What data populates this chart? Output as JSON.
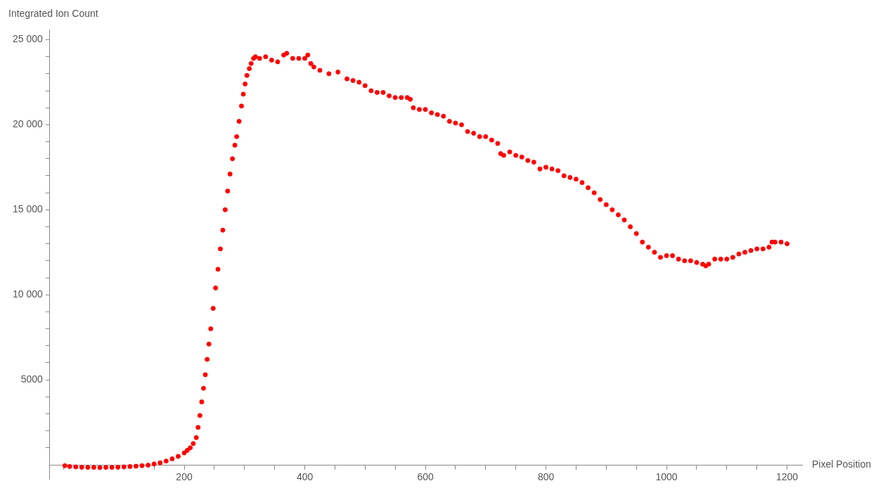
{
  "chart_data": {
    "type": "scatter",
    "xlabel": "Pixel Position",
    "ylabel": "Integrated Ion Count",
    "marker": "circle",
    "grid": false,
    "legend": false,
    "xlim": [
      -23,
      1225
    ],
    "ylim": [
      -850,
      25600
    ],
    "xticks": [
      {
        "value": 0,
        "label": null
      },
      {
        "value": 50,
        "label": null
      },
      {
        "value": 100,
        "label": null
      },
      {
        "value": 150,
        "label": null
      },
      200,
      {
        "value": 250,
        "label": null
      },
      {
        "value": 300,
        "label": null
      },
      {
        "value": 350,
        "label": null
      },
      400,
      {
        "value": 450,
        "label": null
      },
      {
        "value": 500,
        "label": null
      },
      {
        "value": 550,
        "label": null
      },
      600,
      {
        "value": 650,
        "label": null
      },
      {
        "value": 700,
        "label": null
      },
      {
        "value": 750,
        "label": null
      },
      800,
      {
        "value": 850,
        "label": null
      },
      {
        "value": 900,
        "label": null
      },
      {
        "value": 950,
        "label": null
      },
      1000,
      {
        "value": 1050,
        "label": null
      },
      {
        "value": 1100,
        "label": null
      },
      {
        "value": 1150,
        "label": null
      },
      1200
    ],
    "yticks": [
      {
        "value": 1000,
        "label": null
      },
      {
        "value": 2000,
        "label": null
      },
      {
        "value": 3000,
        "label": null
      },
      {
        "value": 4000,
        "label": null
      },
      5000,
      {
        "value": 6000,
        "label": null
      },
      {
        "value": 7000,
        "label": null
      },
      {
        "value": 8000,
        "label": null
      },
      {
        "value": 9000,
        "label": null
      },
      {
        "value": 10000,
        "label": "10 000"
      },
      {
        "value": 11000,
        "label": null
      },
      {
        "value": 12000,
        "label": null
      },
      {
        "value": 13000,
        "label": null
      },
      {
        "value": 14000,
        "label": null
      },
      {
        "value": 15000,
        "label": "15 000"
      },
      {
        "value": 16000,
        "label": null
      },
      {
        "value": 17000,
        "label": null
      },
      {
        "value": 18000,
        "label": null
      },
      {
        "value": 19000,
        "label": null
      },
      {
        "value": 20000,
        "label": "20 000"
      },
      {
        "value": 21000,
        "label": null
      },
      {
        "value": 22000,
        "label": null
      },
      {
        "value": 23000,
        "label": null
      },
      {
        "value": 24000,
        "label": null
      },
      {
        "value": 25000,
        "label": "25 000"
      }
    ],
    "series": [
      {
        "color": "#ff0000",
        "x": [
          2,
          10,
          20,
          30,
          40,
          50,
          60,
          70,
          80,
          90,
          100,
          110,
          120,
          130,
          140,
          150,
          160,
          170,
          180,
          190,
          200,
          205,
          210,
          215,
          220,
          223,
          226,
          229,
          232,
          235,
          238,
          241,
          244,
          248,
          252,
          256,
          260,
          264,
          268,
          272,
          276,
          280,
          284,
          287,
          291,
          295,
          298,
          301,
          304,
          308,
          311,
          315,
          318,
          325,
          335,
          345,
          355,
          365,
          370,
          380,
          390,
          400,
          405,
          410,
          415,
          425,
          440,
          455,
          470,
          480,
          490,
          500,
          510,
          520,
          530,
          540,
          550,
          560,
          570,
          575,
          580,
          590,
          600,
          610,
          620,
          630,
          640,
          650,
          660,
          670,
          680,
          690,
          700,
          710,
          720,
          725,
          730,
          740,
          750,
          760,
          770,
          780,
          790,
          800,
          810,
          820,
          830,
          840,
          850,
          860,
          870,
          880,
          890,
          900,
          910,
          920,
          930,
          940,
          950,
          960,
          970,
          980,
          990,
          1000,
          1010,
          1020,
          1030,
          1040,
          1050,
          1060,
          1065,
          1070,
          1080,
          1090,
          1100,
          1110,
          1120,
          1130,
          1140,
          1150,
          1160,
          1170,
          1175,
          1180,
          1190,
          1200
        ],
        "values": [
          -50,
          -100,
          -120,
          -140,
          -150,
          -150,
          -160,
          -150,
          -150,
          -140,
          -120,
          -100,
          -80,
          -50,
          -20,
          50,
          120,
          220,
          350,
          500,
          700,
          850,
          1000,
          1250,
          1600,
          2200,
          2900,
          3700,
          4500,
          5300,
          6200,
          7100,
          8000,
          9200,
          10400,
          11500,
          12700,
          13800,
          15000,
          16100,
          17100,
          18000,
          18800,
          19300,
          20200,
          21100,
          21800,
          22400,
          22900,
          23300,
          23600,
          23900,
          24000,
          23900,
          24000,
          23800,
          23700,
          24100,
          24200,
          23900,
          23900,
          23900,
          24100,
          23600,
          23400,
          23200,
          23000,
          23100,
          22700,
          22600,
          22500,
          22300,
          22000,
          21900,
          21900,
          21700,
          21600,
          21600,
          21600,
          21500,
          21000,
          20900,
          20900,
          20700,
          20600,
          20500,
          20200,
          20100,
          20000,
          19600,
          19500,
          19300,
          19300,
          19100,
          18900,
          18300,
          18200,
          18400,
          18200,
          18100,
          17900,
          17800,
          17400,
          17500,
          17400,
          17300,
          17000,
          16900,
          16800,
          16600,
          16300,
          16000,
          15600,
          15300,
          15000,
          14700,
          14400,
          14000,
          13600,
          13100,
          12800,
          12500,
          12200,
          12300,
          12300,
          12100,
          12000,
          12000,
          11900,
          11800,
          11700,
          11800,
          12100,
          12100,
          12100,
          12200,
          12400,
          12500,
          12600,
          12700,
          12700,
          12800,
          13100,
          13100,
          13100,
          13000
        ]
      }
    ]
  }
}
